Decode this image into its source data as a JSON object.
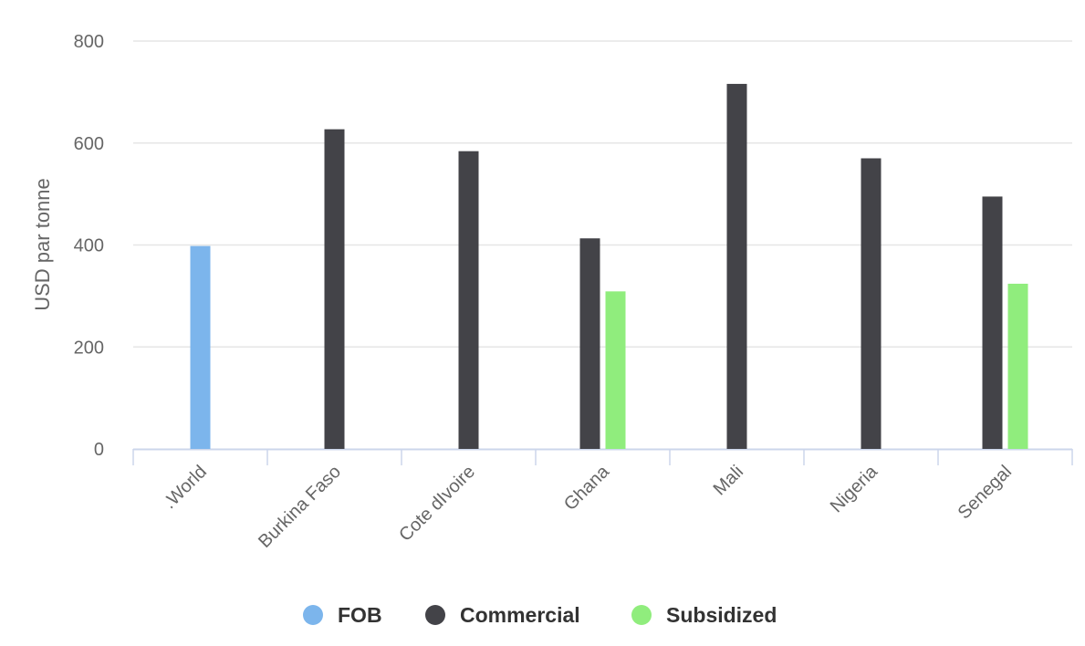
{
  "chart_data": {
    "type": "bar",
    "title": "",
    "xlabel": "",
    "ylabel": "USD par tonne",
    "ylim": [
      0,
      800
    ],
    "yticks": [
      0,
      200,
      400,
      600,
      800
    ],
    "grid": true,
    "legend_position": "bottom",
    "categories": [
      ".World",
      "Burkina Faso",
      "Cote dIvoire",
      "Ghana",
      "Mali",
      "Nigeria",
      "Senegal"
    ],
    "series": [
      {
        "name": "FOB",
        "color": "#7cb5ec",
        "values": [
          398,
          null,
          null,
          null,
          null,
          null,
          null
        ]
      },
      {
        "name": "Commercial",
        "color": "#434348",
        "values": [
          null,
          627,
          584,
          413,
          716,
          570,
          495
        ]
      },
      {
        "name": "Subsidized",
        "color": "#90ed7d",
        "values": [
          null,
          null,
          null,
          309,
          null,
          null,
          324
        ]
      }
    ]
  }
}
